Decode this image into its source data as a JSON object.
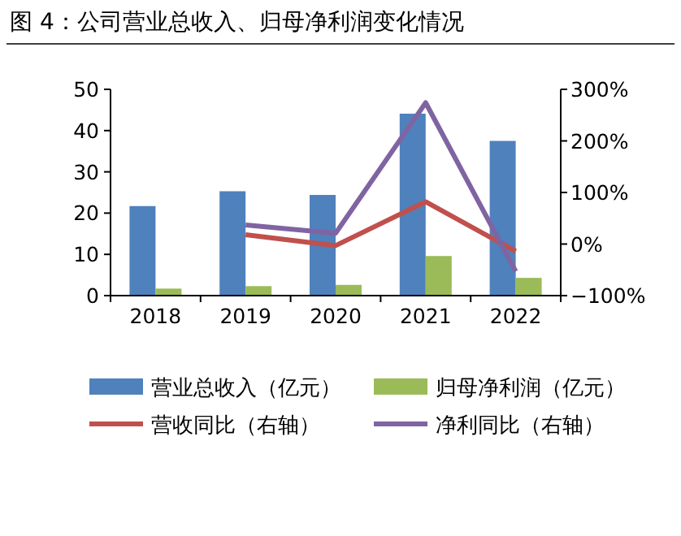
{
  "chart_data": {
    "type": "bar",
    "title": "图 4：公司营业总收入、归母净利润变化情况",
    "categories": [
      "2018",
      "2019",
      "2020",
      "2021",
      "2022"
    ],
    "series": [
      {
        "name": "营业总收入（亿元）",
        "color": "#4f81bd",
        "values": [
          21.7,
          25.3,
          24.4,
          44.1,
          37.5
        ]
      },
      {
        "name": "归母净利润（亿元）",
        "color": "#9bbb59",
        "values": [
          1.7,
          2.3,
          2.6,
          9.6,
          4.3
        ]
      },
      {
        "name": "营收同比（右轴）",
        "type": "line",
        "axis": "y2",
        "color": "#c0504d",
        "values": [
          null,
          18,
          -3,
          82,
          -14
        ]
      },
      {
        "name": "净利同比（右轴）",
        "type": "line",
        "axis": "y2",
        "color": "#8064a2",
        "values": [
          null,
          37,
          21,
          274,
          -53
        ]
      }
    ],
    "ylim": [
      0,
      50
    ],
    "yticks": [
      0,
      10,
      20,
      30,
      40,
      50
    ],
    "y2lim": [
      -100,
      300
    ],
    "y2ticks": [
      {
        "value": -100,
        "label": "−100%"
      },
      {
        "value": 0,
        "label": "0%"
      },
      {
        "value": 100,
        "label": "100%"
      },
      {
        "value": 200,
        "label": "200%"
      },
      {
        "value": 300,
        "label": "300%"
      }
    ],
    "grid": false,
    "legend": "bottom"
  }
}
